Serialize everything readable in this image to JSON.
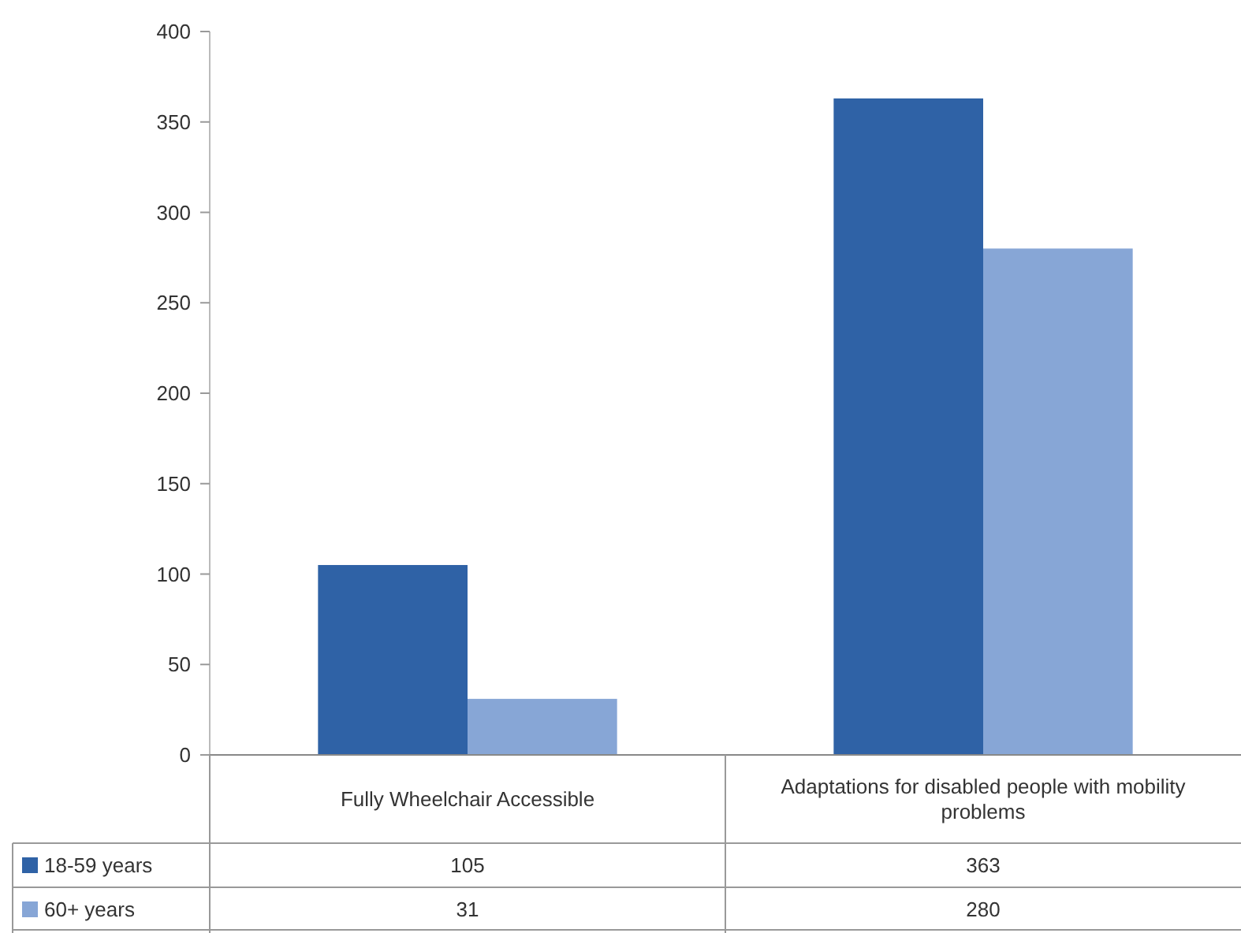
{
  "chart_data": {
    "type": "bar",
    "categories": [
      "Fully Wheelchair Accessible",
      "Adaptations for disabled people with mobility problems"
    ],
    "series": [
      {
        "name": "18-59 years",
        "color": "#2f62a6",
        "values": [
          105,
          363
        ]
      },
      {
        "name": "60+ years",
        "color": "#87a6d6",
        "values": [
          31,
          280
        ]
      }
    ],
    "ylim": [
      0,
      400
    ],
    "yticks": [
      0,
      50,
      100,
      150,
      200,
      250,
      300,
      350,
      400
    ],
    "grid": false,
    "legend": "bottom",
    "data_labels": true
  }
}
